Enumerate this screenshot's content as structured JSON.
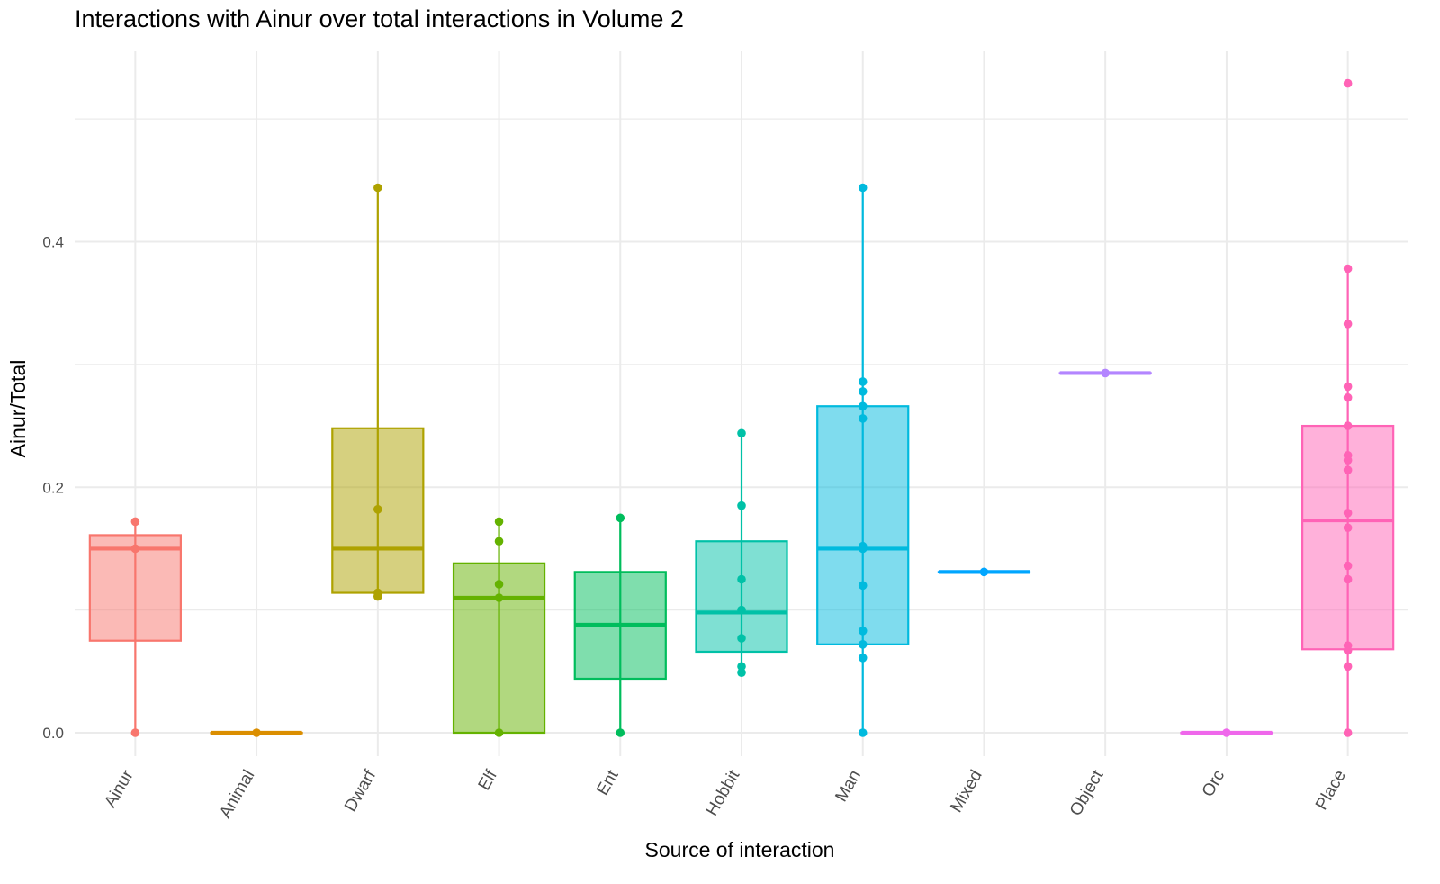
{
  "chart_data": {
    "type": "boxplot",
    "title": "Interactions with Ainur over total interactions in Volume 2",
    "xlabel": "Source of interaction",
    "ylabel": "Ainur/Total",
    "ylim": [
      -0.04,
      0.54
    ],
    "yticks": [
      0.0,
      0.2,
      0.4
    ],
    "ytick_labels": [
      "0.0",
      "0.2",
      "0.4"
    ],
    "grid": true,
    "legend": "none",
    "categories": [
      {
        "name": "Ainur",
        "color": "#F8766D",
        "min": 0.0,
        "q1": 0.075,
        "median": 0.15,
        "q3": 0.161,
        "max": 0.172,
        "points": [
          0.0,
          0.15,
          0.172
        ]
      },
      {
        "name": "Animal",
        "color": "#DB8E00",
        "min": 0.0,
        "q1": 0.0,
        "median": 0.0,
        "q3": 0.0,
        "max": 0.0,
        "points": [
          0.0
        ]
      },
      {
        "name": "Dwarf",
        "color": "#AEA200",
        "min": 0.111,
        "q1": 0.114,
        "median": 0.15,
        "q3": 0.248,
        "max": 0.444,
        "points": [
          0.111,
          0.114,
          0.182,
          0.444
        ]
      },
      {
        "name": "Elf",
        "color": "#64B200",
        "min": 0.0,
        "q1": 0.0,
        "median": 0.11,
        "q3": 0.138,
        "max": 0.172,
        "points": [
          0.0,
          0.11,
          0.121,
          0.156,
          0.172
        ]
      },
      {
        "name": "Ent",
        "color": "#00BD5C",
        "min": 0.0,
        "q1": 0.044,
        "median": 0.088,
        "q3": 0.131,
        "max": 0.175,
        "points": [
          0.0,
          0.175
        ]
      },
      {
        "name": "Hobbit",
        "color": "#00C1A7",
        "min": 0.049,
        "q1": 0.066,
        "median": 0.098,
        "q3": 0.156,
        "max": 0.244,
        "points": [
          0.049,
          0.054,
          0.077,
          0.1,
          0.125,
          0.185,
          0.244
        ]
      },
      {
        "name": "Man",
        "color": "#00BADE",
        "min": 0.0,
        "q1": 0.072,
        "median": 0.15,
        "q3": 0.266,
        "max": 0.444,
        "points": [
          0.0,
          0.061,
          0.072,
          0.083,
          0.12,
          0.15,
          0.152,
          0.256,
          0.266,
          0.278,
          0.286,
          0.444
        ]
      },
      {
        "name": "Mixed",
        "color": "#00A6FF",
        "min": 0.131,
        "q1": 0.131,
        "median": 0.131,
        "q3": 0.131,
        "max": 0.131,
        "points": [
          0.131
        ]
      },
      {
        "name": "Object",
        "color": "#B385FF",
        "min": 0.293,
        "q1": 0.293,
        "median": 0.293,
        "q3": 0.293,
        "max": 0.293,
        "points": [
          0.293
        ]
      },
      {
        "name": "Orc",
        "color": "#EF67EB",
        "min": 0.0,
        "q1": 0.0,
        "median": 0.0,
        "q3": 0.0,
        "max": 0.0,
        "points": [
          0.0
        ]
      },
      {
        "name": "Place",
        "color": "#FF63B6",
        "min": 0.0,
        "q1": 0.068,
        "median": 0.173,
        "q3": 0.25,
        "max": 0.378,
        "points": [
          0.0,
          0.054,
          0.067,
          0.071,
          0.125,
          0.136,
          0.167,
          0.179,
          0.214,
          0.222,
          0.226,
          0.25,
          0.273,
          0.282,
          0.333,
          0.378,
          0.529
        ]
      }
    ]
  }
}
